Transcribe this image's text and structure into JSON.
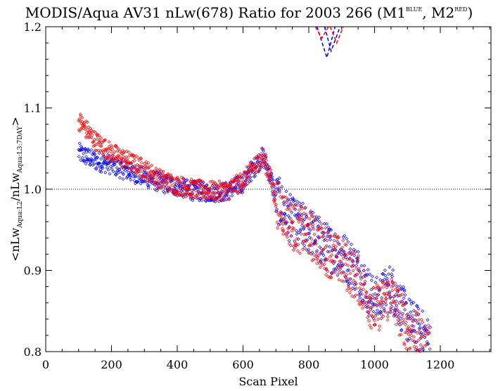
{
  "chart_data": {
    "type": "scatter",
    "title": "MODIS/Aqua AV31 nLw(678) Ratio for 2003 266 (M1",
    "title_sup1": "BLUE",
    "title_mid": ", M2",
    "title_sup2": "RED",
    "title_end": ")",
    "xlabel": "Scan Pixel",
    "ylabel_parts": {
      "open": "<nLw",
      "sub1": "Aqua:L2",
      "mid": "/nLw",
      "sub2": "Aqua:L3:7DAY",
      "close": ">"
    },
    "xlim": [
      0,
      1354
    ],
    "ylim": [
      0.8,
      1.2
    ],
    "xticks": [
      0,
      200,
      400,
      600,
      800,
      1000,
      1200
    ],
    "xtick_labels": [
      "0",
      "200",
      "400",
      "600",
      "800",
      "1000",
      "1200"
    ],
    "yticks": [
      0.8,
      0.9,
      1.0,
      1.1,
      1.2
    ],
    "ytick_labels": [
      "0.8",
      "0.9",
      "1.0",
      "1.1",
      "1.2"
    ],
    "reference_line": 1.0,
    "legend": "none",
    "grid": false,
    "series": [
      {
        "color": "#0000ff",
        "marker": "open-diamond",
        "points_trend": [
          [
            100,
            1.045
          ],
          [
            150,
            1.035
          ],
          [
            200,
            1.03
          ],
          [
            250,
            1.022
          ],
          [
            300,
            1.015
          ],
          [
            350,
            1.008
          ],
          [
            400,
            1.003
          ],
          [
            450,
            0.998
          ],
          [
            500,
            0.996
          ],
          [
            550,
            0.997
          ],
          [
            600,
            1.008
          ],
          [
            640,
            1.03
          ],
          [
            660,
            1.04
          ],
          [
            680,
            1.02
          ],
          [
            700,
            0.99
          ],
          [
            750,
            0.96
          ],
          [
            800,
            0.95
          ],
          [
            850,
            0.93
          ],
          [
            900,
            0.92
          ],
          [
            950,
            0.9
          ],
          [
            1000,
            0.86
          ],
          [
            1050,
            0.88
          ],
          [
            1100,
            0.84
          ],
          [
            1150,
            0.82
          ],
          [
            1170,
            0.81
          ]
        ],
        "spread": 0.012
      },
      {
        "color": "#ff0000",
        "marker": "open-diamond",
        "points_trend": [
          [
            100,
            1.085
          ],
          [
            150,
            1.06
          ],
          [
            200,
            1.045
          ],
          [
            250,
            1.035
          ],
          [
            300,
            1.025
          ],
          [
            350,
            1.012
          ],
          [
            400,
            1.005
          ],
          [
            450,
            1.0
          ],
          [
            500,
            0.998
          ],
          [
            550,
            0.998
          ],
          [
            600,
            1.01
          ],
          [
            640,
            1.03
          ],
          [
            660,
            1.04
          ],
          [
            680,
            1.02
          ],
          [
            700,
            0.985
          ],
          [
            750,
            0.955
          ],
          [
            800,
            0.945
          ],
          [
            850,
            0.925
          ],
          [
            900,
            0.91
          ],
          [
            950,
            0.89
          ],
          [
            1000,
            0.85
          ],
          [
            1050,
            0.87
          ],
          [
            1100,
            0.83
          ],
          [
            1150,
            0.81
          ],
          [
            1170,
            0.8
          ]
        ],
        "spread": 0.012
      }
    ],
    "dashed_lines": [
      {
        "color": "#0000ff",
        "points": [
          [
            825,
            1.2
          ],
          [
            855,
            1.162
          ],
          [
            880,
            1.2
          ]
        ]
      },
      {
        "color": "#0000ff",
        "points": [
          [
            848,
            1.2
          ],
          [
            868,
            1.17
          ],
          [
            895,
            1.2
          ]
        ]
      },
      {
        "color": "#ff0000",
        "points": [
          [
            820,
            1.2
          ],
          [
            840,
            1.186
          ],
          [
            860,
            1.2
          ]
        ]
      },
      {
        "color": "#ff0000",
        "points": [
          [
            865,
            1.2
          ],
          [
            885,
            1.18
          ],
          [
            905,
            1.2
          ]
        ]
      }
    ]
  }
}
